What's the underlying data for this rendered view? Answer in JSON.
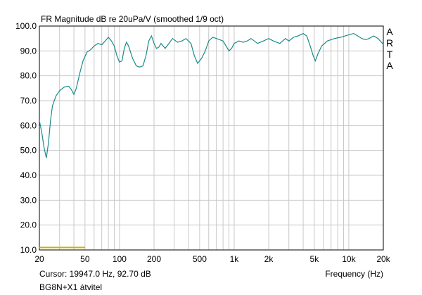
{
  "chart_data": {
    "type": "line",
    "title": "FR Magnitude dB re 20uPa/V (smoothed 1/9 oct)",
    "xlabel": "Frequency (Hz)",
    "ylabel": "",
    "xscale": "log",
    "xlim": [
      20,
      20000
    ],
    "ylim": [
      10,
      100
    ],
    "grid": true,
    "y_ticks": [
      {
        "value": 100,
        "label": "100.0"
      },
      {
        "value": 90,
        "label": "90.0"
      },
      {
        "value": 80,
        "label": "80.0"
      },
      {
        "value": 70,
        "label": "70.0"
      },
      {
        "value": 60,
        "label": "60.0"
      },
      {
        "value": 50,
        "label": "50.0"
      },
      {
        "value": 40,
        "label": "40.0"
      },
      {
        "value": 30,
        "label": "30.0"
      },
      {
        "value": 20,
        "label": "20.0"
      },
      {
        "value": 10,
        "label": "10.0"
      }
    ],
    "x_ticks": [
      {
        "value": 20,
        "label": "20"
      },
      {
        "value": 50,
        "label": "50"
      },
      {
        "value": 100,
        "label": "100"
      },
      {
        "value": 200,
        "label": "200"
      },
      {
        "value": 500,
        "label": "500"
      },
      {
        "value": 1000,
        "label": "1k"
      },
      {
        "value": 2000,
        "label": "2k"
      },
      {
        "value": 5000,
        "label": "5k"
      },
      {
        "value": 10000,
        "label": "10k"
      },
      {
        "value": 20000,
        "label": "20k"
      }
    ],
    "x_grid": [
      20,
      30,
      40,
      50,
      60,
      70,
      80,
      90,
      100,
      200,
      300,
      400,
      500,
      600,
      700,
      800,
      900,
      1000,
      2000,
      3000,
      4000,
      5000,
      6000,
      7000,
      8000,
      9000,
      10000,
      20000
    ],
    "series": [
      {
        "color": "#1a8a8a",
        "points": [
          [
            20,
            62
          ],
          [
            21,
            57
          ],
          [
            22,
            51
          ],
          [
            23,
            47
          ],
          [
            24,
            53
          ],
          [
            25,
            62
          ],
          [
            26,
            68
          ],
          [
            28,
            72
          ],
          [
            30,
            74
          ],
          [
            33,
            75.5
          ],
          [
            36,
            75.8
          ],
          [
            38,
            74.5
          ],
          [
            40,
            72.5
          ],
          [
            42,
            75
          ],
          [
            45,
            81
          ],
          [
            48,
            86
          ],
          [
            52,
            89.5
          ],
          [
            56,
            90.5
          ],
          [
            60,
            92
          ],
          [
            65,
            93
          ],
          [
            70,
            92.5
          ],
          [
            75,
            94
          ],
          [
            80,
            95.5
          ],
          [
            85,
            94
          ],
          [
            90,
            92
          ],
          [
            95,
            88
          ],
          [
            100,
            85.5
          ],
          [
            105,
            86
          ],
          [
            110,
            91
          ],
          [
            115,
            93.5
          ],
          [
            120,
            92
          ],
          [
            130,
            87
          ],
          [
            140,
            84
          ],
          [
            150,
            83.5
          ],
          [
            160,
            84
          ],
          [
            170,
            88
          ],
          [
            180,
            94
          ],
          [
            190,
            96
          ],
          [
            200,
            93
          ],
          [
            210,
            91
          ],
          [
            220,
            91.5
          ],
          [
            230,
            93
          ],
          [
            250,
            91
          ],
          [
            270,
            93
          ],
          [
            290,
            95
          ],
          [
            320,
            93.5
          ],
          [
            350,
            94
          ],
          [
            380,
            95
          ],
          [
            420,
            93
          ],
          [
            450,
            88
          ],
          [
            480,
            85
          ],
          [
            520,
            87
          ],
          [
            560,
            90
          ],
          [
            600,
            94
          ],
          [
            650,
            95.5
          ],
          [
            700,
            95
          ],
          [
            750,
            94.5
          ],
          [
            800,
            94
          ],
          [
            850,
            92
          ],
          [
            900,
            90
          ],
          [
            950,
            91
          ],
          [
            1000,
            93
          ],
          [
            1100,
            94
          ],
          [
            1200,
            93.5
          ],
          [
            1300,
            94
          ],
          [
            1400,
            95
          ],
          [
            1500,
            94
          ],
          [
            1600,
            93
          ],
          [
            1800,
            94
          ],
          [
            2000,
            95
          ],
          [
            2200,
            94
          ],
          [
            2500,
            93
          ],
          [
            2800,
            95
          ],
          [
            3000,
            94
          ],
          [
            3300,
            95.5
          ],
          [
            3600,
            96
          ],
          [
            4000,
            97
          ],
          [
            4300,
            96
          ],
          [
            4600,
            92
          ],
          [
            4900,
            88
          ],
          [
            5100,
            86
          ],
          [
            5400,
            89
          ],
          [
            5800,
            92
          ],
          [
            6500,
            94
          ],
          [
            7500,
            95
          ],
          [
            8500,
            95.5
          ],
          [
            10000,
            96.5
          ],
          [
            11000,
            97
          ],
          [
            12000,
            96
          ],
          [
            13000,
            95
          ],
          [
            14000,
            94.5
          ],
          [
            15000,
            95
          ],
          [
            16500,
            96
          ],
          [
            18000,
            95
          ],
          [
            19947,
            92.7
          ],
          [
            20000,
            92.5
          ]
        ]
      }
    ],
    "marker_line": {
      "x": [
        20,
        50
      ],
      "y": 11,
      "color": "#c9b400"
    },
    "cursor_text": "Cursor: 19947.0 Hz, 92.70 dB",
    "caption": "BG8N+X1 átvitel",
    "brand_letters": [
      "A",
      "R",
      "T",
      "A"
    ]
  }
}
